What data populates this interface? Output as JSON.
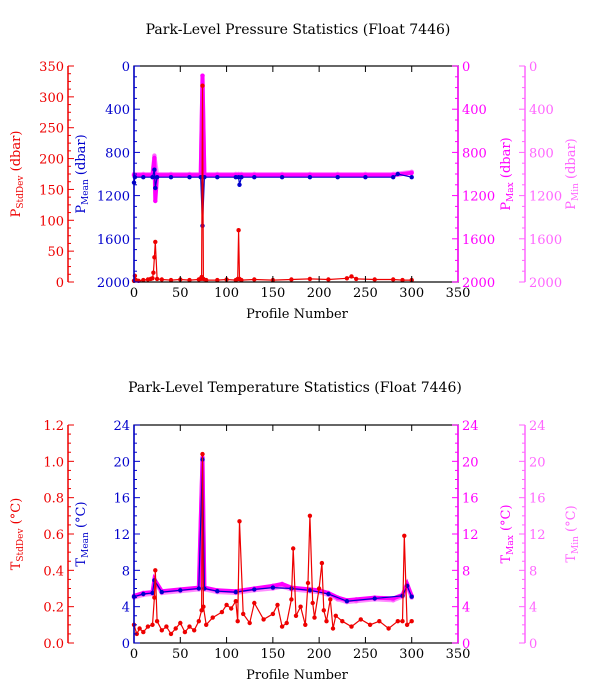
{
  "colors": {
    "stddev": "#ee0000",
    "mean": "#0000cc",
    "max": "#ff00ff",
    "min": "#ff66ff",
    "frame": "#000000"
  },
  "chart_data": [
    {
      "type": "scatter",
      "title": "Park-Level Pressure Statistics (Float 7446)",
      "xlabel": "Profile Number",
      "xlim": [
        0,
        350
      ],
      "xticks": [
        "0",
        "50",
        "100",
        "150",
        "200",
        "250",
        "300",
        "350"
      ],
      "axes": [
        {
          "key": "stddev",
          "label_main": "P",
          "label_sub": "StdDev",
          "label_unit": " (dbar)",
          "lim": [
            0,
            350
          ],
          "ticks": [
            "0",
            "50",
            "100",
            "150",
            "200",
            "250",
            "300",
            "350"
          ],
          "inverted": false
        },
        {
          "key": "mean",
          "label_main": "P",
          "label_sub": "Mean",
          "label_unit": " (dbar)",
          "lim": [
            0,
            2000
          ],
          "ticks": [
            "0",
            "400",
            "800",
            "1200",
            "1600",
            "2000"
          ],
          "inverted": true
        },
        {
          "key": "max",
          "label_main": "P",
          "label_sub": "Max",
          "label_unit": " (dbar)",
          "lim": [
            0,
            2000
          ],
          "ticks": [
            "0",
            "400",
            "800",
            "1200",
            "1600",
            "2000"
          ],
          "inverted": true
        },
        {
          "key": "min",
          "label_main": "P",
          "label_sub": "Min",
          "label_unit": " (dbar)",
          "lim": [
            0,
            2000
          ],
          "ticks": [
            "0",
            "400",
            "800",
            "1200",
            "1600",
            "2000"
          ],
          "inverted": true
        }
      ],
      "series": [
        {
          "key": "min",
          "x": [
            0,
            10,
            20,
            22,
            25,
            40,
            60,
            72,
            74,
            76,
            90,
            110,
            113,
            116,
            130,
            160,
            190,
            220,
            250,
            280,
            300
          ],
          "y": [
            1000,
            1000,
            1000,
            830,
            1000,
            1000,
            1000,
            1000,
            90,
            1000,
            1000,
            1000,
            1000,
            1000,
            1000,
            1000,
            1000,
            1000,
            1000,
            1000,
            980
          ]
        },
        {
          "key": "max",
          "x": [
            0,
            10,
            20,
            22,
            23,
            25,
            40,
            60,
            72,
            74,
            76,
            90,
            110,
            113,
            116,
            130,
            160,
            190,
            220,
            250,
            280,
            300
          ],
          "y": [
            1010,
            1010,
            1010,
            850,
            1250,
            1010,
            1010,
            1010,
            1010,
            90,
            1010,
            1010,
            1010,
            1010,
            1010,
            1010,
            1010,
            1010,
            1010,
            1010,
            1010,
            990
          ]
        },
        {
          "key": "mean",
          "x": [
            0,
            1,
            10,
            20,
            22,
            23,
            25,
            40,
            60,
            72,
            74,
            76,
            90,
            110,
            113,
            114,
            116,
            130,
            160,
            190,
            220,
            250,
            280,
            285,
            300
          ],
          "y": [
            1080,
            1030,
            1030,
            1030,
            960,
            1130,
            1030,
            1030,
            1030,
            1030,
            1480,
            1030,
            1030,
            1030,
            1030,
            1100,
            1030,
            1030,
            1030,
            1030,
            1030,
            1030,
            1030,
            1000,
            1030
          ]
        },
        {
          "key": "stddev",
          "x": [
            0,
            1,
            2,
            5,
            10,
            15,
            18,
            20,
            21,
            22,
            23,
            25,
            30,
            40,
            50,
            60,
            70,
            72,
            73,
            74,
            75,
            78,
            90,
            100,
            110,
            112,
            113,
            114,
            116,
            130,
            150,
            170,
            190,
            210,
            230,
            235,
            240,
            260,
            280,
            290,
            300
          ],
          "y": [
            2,
            10,
            3,
            2,
            3,
            4,
            5,
            6,
            15,
            40,
            65,
            5,
            4,
            3,
            4,
            3,
            4,
            5,
            8,
            318,
            5,
            3,
            3,
            4,
            3,
            5,
            84,
            5,
            3,
            4,
            3,
            4,
            5,
            4,
            6,
            9,
            5,
            4,
            4,
            3,
            3
          ]
        }
      ]
    },
    {
      "type": "scatter",
      "title": "Park-Level Temperature Statistics (Float 7446)",
      "xlabel": "Profile Number",
      "xlim": [
        0,
        350
      ],
      "xticks": [
        "0",
        "50",
        "100",
        "150",
        "200",
        "250",
        "300",
        "350"
      ],
      "axes": [
        {
          "key": "stddev",
          "label_main": "T",
          "label_sub": "StdDev",
          "label_unit": " (°C)",
          "lim": [
            0,
            1.2
          ],
          "ticks": [
            "0.0",
            "0.2",
            "0.4",
            "0.6",
            "0.8",
            "1.0",
            "1.2"
          ],
          "inverted": false
        },
        {
          "key": "mean",
          "label_main": "T",
          "label_sub": "Mean",
          "label_unit": " (°C)",
          "lim": [
            0,
            24
          ],
          "ticks": [
            "0",
            "4",
            "8",
            "12",
            "16",
            "20",
            "24"
          ],
          "inverted": false
        },
        {
          "key": "max",
          "label_main": "T",
          "label_sub": "Max",
          "label_unit": " (°C)",
          "lim": [
            0,
            24
          ],
          "ticks": [
            "0",
            "4",
            "8",
            "12",
            "16",
            "20",
            "24"
          ],
          "inverted": false
        },
        {
          "key": "min",
          "label_main": "T",
          "label_sub": "Min",
          "label_unit": " (°C)",
          "lim": [
            0,
            24
          ],
          "ticks": [
            "0",
            "4",
            "8",
            "12",
            "16",
            "20",
            "24"
          ],
          "inverted": false
        }
      ],
      "series": [
        {
          "key": "min",
          "x": [
            0,
            10,
            20,
            22,
            30,
            50,
            70,
            74,
            76,
            90,
            110,
            130,
            150,
            160,
            170,
            190,
            200,
            210,
            220,
            230,
            240,
            260,
            280,
            290,
            295,
            300
          ],
          "y": [
            5.0,
            5.3,
            5.4,
            6.8,
            5.5,
            5.7,
            5.9,
            20.0,
            5.9,
            5.6,
            5.5,
            5.8,
            6.0,
            6.2,
            5.9,
            5.7,
            5.6,
            5.3,
            4.8,
            4.5,
            4.6,
            4.8,
            4.7,
            5.1,
            6.2,
            5.0
          ]
        },
        {
          "key": "max",
          "x": [
            0,
            10,
            20,
            22,
            30,
            50,
            70,
            74,
            76,
            90,
            110,
            130,
            150,
            160,
            170,
            190,
            200,
            210,
            220,
            230,
            240,
            260,
            280,
            290,
            295,
            300
          ],
          "y": [
            5.2,
            5.5,
            5.6,
            7.0,
            5.7,
            5.9,
            6.1,
            20.4,
            6.1,
            5.8,
            5.7,
            6.0,
            6.3,
            6.5,
            6.1,
            5.9,
            5.8,
            5.5,
            5.0,
            4.7,
            4.8,
            5.0,
            4.9,
            5.3,
            6.5,
            5.2
          ]
        },
        {
          "key": "mean",
          "x": [
            0,
            10,
            20,
            22,
            30,
            50,
            70,
            74,
            76,
            90,
            110,
            130,
            150,
            170,
            190,
            210,
            230,
            260,
            290,
            295,
            300
          ],
          "y": [
            5.1,
            5.4,
            5.5,
            6.9,
            5.6,
            5.8,
            6.0,
            20.2,
            6.0,
            5.7,
            5.6,
            5.9,
            6.1,
            6.0,
            5.8,
            5.4,
            4.6,
            4.9,
            5.2,
            6.3,
            5.1
          ]
        },
        {
          "key": "stddev",
          "x": [
            0,
            3,
            6,
            10,
            15,
            20,
            22,
            23,
            25,
            30,
            35,
            40,
            45,
            50,
            55,
            60,
            65,
            70,
            73,
            74,
            75,
            78,
            85,
            95,
            100,
            105,
            110,
            112,
            114,
            118,
            125,
            130,
            140,
            150,
            155,
            160,
            165,
            170,
            172,
            175,
            180,
            185,
            188,
            190,
            193,
            195,
            200,
            203,
            205,
            208,
            212,
            215,
            218,
            225,
            235,
            245,
            255,
            265,
            275,
            285,
            290,
            292,
            295,
            300
          ],
          "y": [
            0.1,
            0.05,
            0.08,
            0.06,
            0.09,
            0.1,
            0.25,
            0.4,
            0.12,
            0.07,
            0.09,
            0.05,
            0.08,
            0.11,
            0.06,
            0.09,
            0.07,
            0.12,
            0.18,
            1.04,
            0.2,
            0.1,
            0.14,
            0.17,
            0.21,
            0.19,
            0.23,
            0.12,
            0.67,
            0.16,
            0.11,
            0.22,
            0.13,
            0.16,
            0.21,
            0.09,
            0.11,
            0.24,
            0.52,
            0.15,
            0.2,
            0.1,
            0.33,
            0.7,
            0.22,
            0.14,
            0.3,
            0.44,
            0.18,
            0.12,
            0.24,
            0.08,
            0.15,
            0.12,
            0.09,
            0.13,
            0.1,
            0.12,
            0.08,
            0.12,
            0.12,
            0.59,
            0.1,
            0.12
          ]
        }
      ]
    }
  ]
}
